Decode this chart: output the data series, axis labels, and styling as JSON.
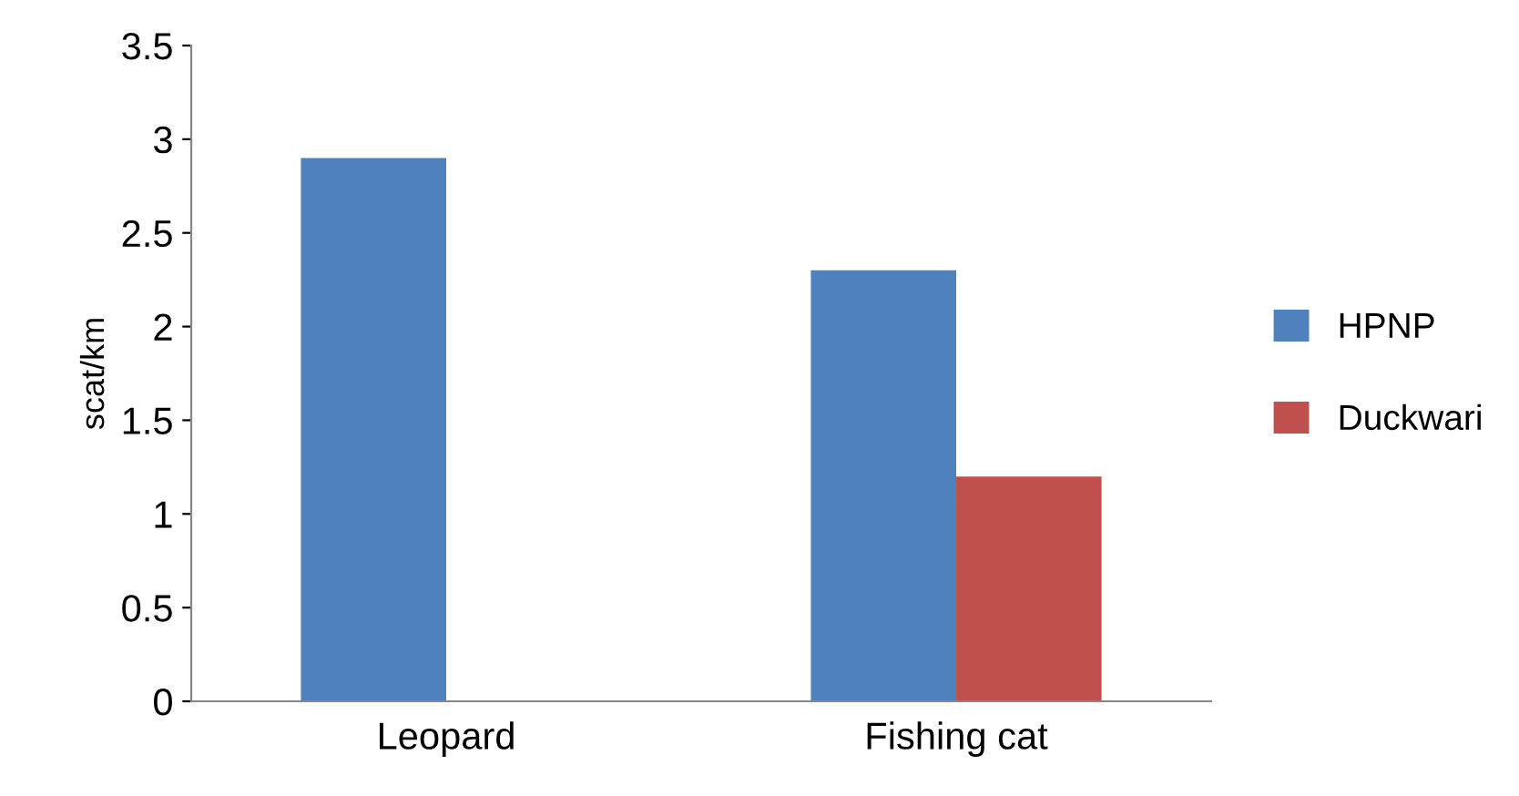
{
  "chart_data": {
    "type": "bar",
    "ylabel": "scat/km",
    "categories": [
      "Leopard",
      "Fishing cat"
    ],
    "series": [
      {
        "name": "HPNP",
        "color": "#4f81bd",
        "values": [
          2.9,
          2.3
        ]
      },
      {
        "name": "Duckwari",
        "color": "#c0504d",
        "values": [
          null,
          1.2
        ]
      }
    ],
    "ylim": [
      0,
      3.5
    ],
    "yticks": [
      0,
      0.5,
      1,
      1.5,
      2,
      2.5,
      3,
      3.5
    ],
    "grid": false,
    "legend": "right"
  }
}
